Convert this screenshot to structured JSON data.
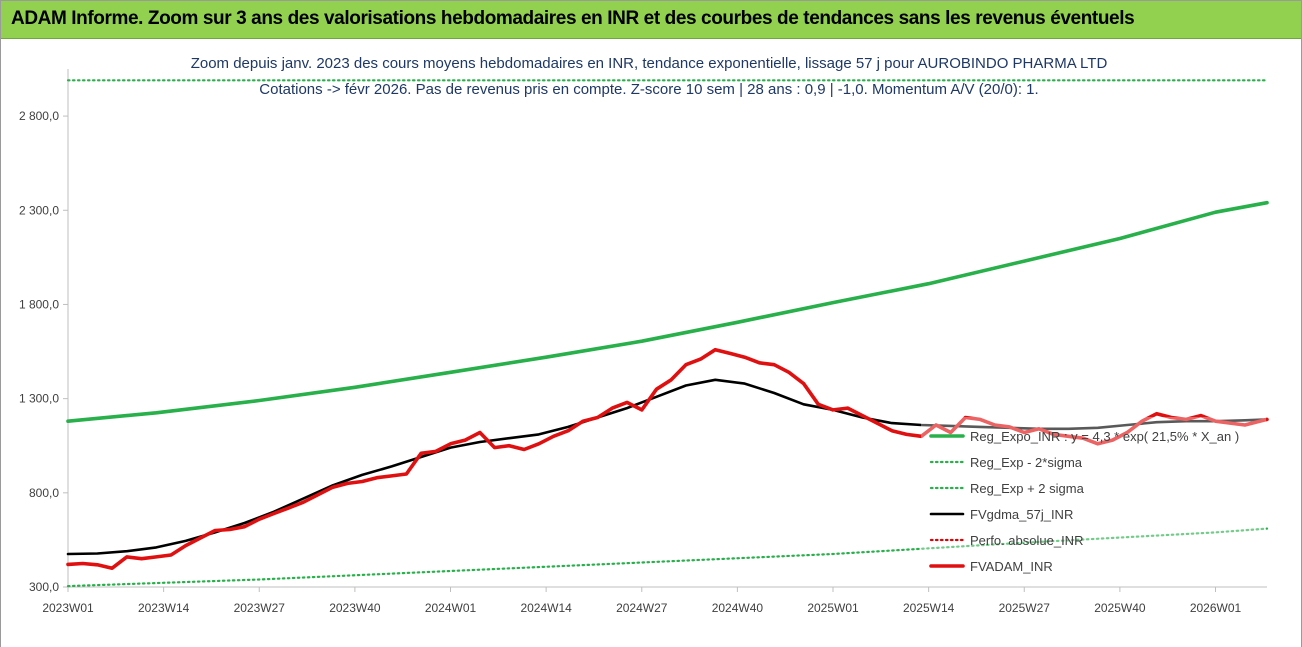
{
  "banner": {
    "title": "ADAM Informe. Zoom sur 3 ans des valorisations hebdomadaires en INR et des courbes de tendances sans les revenus éventuels"
  },
  "chart_data": {
    "type": "line",
    "subtitle_line1": "Zoom depuis janv. 2023 des cours moyens hebdomadaires en INR, tendance exponentielle, lissage 57 j pour AUROBINDO PHARMA LTD",
    "subtitle_line2": "Cotations -> févr 2026. Pas de revenus pris en compte. Z-score 10 sem | 28 ans : 0,9 | -1,0. Momentum A/V (20/0): 1.",
    "ylim": [
      300,
      3050
    ],
    "y_ticks": [
      "300,0",
      "800,0",
      "1 300,0",
      "1 800,0",
      "2 300,0",
      "2 800,0"
    ],
    "x_tick_labels": [
      "2023W01",
      "2023W14",
      "2023W27",
      "2023W40",
      "2024W01",
      "2024W14",
      "2024W27",
      "2024W40",
      "2025W01",
      "2025W14",
      "2025W27",
      "2025W40",
      "2026W01"
    ],
    "grid": false,
    "legend_position": "right",
    "series": [
      {
        "name": "Reg_Expo_INR : y = 4,3 * exp( 21,5% * X_an )",
        "color": "#28b04a",
        "style": "solid",
        "points": [
          [
            0,
            1180
          ],
          [
            12,
            1225
          ],
          [
            26,
            1290
          ],
          [
            39,
            1360
          ],
          [
            52,
            1440
          ],
          [
            65,
            1520
          ],
          [
            78,
            1605
          ],
          [
            91,
            1705
          ],
          [
            104,
            1810
          ],
          [
            117,
            1910
          ],
          [
            130,
            2030
          ],
          [
            143,
            2150
          ],
          [
            156,
            2290
          ],
          [
            163,
            2340
          ]
        ]
      },
      {
        "name": "Reg_Exp - 2*sigma",
        "color": "#28b04a",
        "style": "dotted",
        "points": [
          [
            0,
            305
          ],
          [
            26,
            340
          ],
          [
            52,
            385
          ],
          [
            78,
            430
          ],
          [
            104,
            475
          ],
          [
            130,
            535
          ],
          [
            156,
            590
          ],
          [
            163,
            610
          ]
        ]
      },
      {
        "name": "Reg_Exp + 2 sigma",
        "color": "#28b04a",
        "style": "dotted",
        "points": [
          [
            0,
            2990
          ],
          [
            163,
            2990
          ]
        ]
      },
      {
        "name": "FVgdma_57j_INR",
        "color": "#000000",
        "style": "solid",
        "points": [
          [
            0,
            475
          ],
          [
            4,
            478
          ],
          [
            8,
            490
          ],
          [
            12,
            510
          ],
          [
            16,
            545
          ],
          [
            20,
            590
          ],
          [
            24,
            640
          ],
          [
            28,
            700
          ],
          [
            32,
            770
          ],
          [
            36,
            840
          ],
          [
            40,
            895
          ],
          [
            44,
            940
          ],
          [
            48,
            990
          ],
          [
            52,
            1040
          ],
          [
            56,
            1070
          ],
          [
            60,
            1090
          ],
          [
            64,
            1110
          ],
          [
            68,
            1150
          ],
          [
            72,
            1200
          ],
          [
            76,
            1250
          ],
          [
            80,
            1310
          ],
          [
            84,
            1370
          ],
          [
            88,
            1400
          ],
          [
            92,
            1380
          ],
          [
            96,
            1330
          ],
          [
            100,
            1270
          ],
          [
            104,
            1240
          ],
          [
            108,
            1200
          ],
          [
            112,
            1170
          ],
          [
            116,
            1160
          ],
          [
            120,
            1155
          ],
          [
            124,
            1150
          ],
          [
            128,
            1145
          ],
          [
            132,
            1140
          ],
          [
            136,
            1140
          ],
          [
            140,
            1145
          ],
          [
            144,
            1160
          ],
          [
            148,
            1175
          ],
          [
            152,
            1180
          ],
          [
            156,
            1180
          ],
          [
            160,
            1185
          ],
          [
            163,
            1190
          ]
        ]
      },
      {
        "name": "Perfo. absolue_INR",
        "color": "#e00000",
        "style": "dotted",
        "points": []
      },
      {
        "name": "FVADAM_INR",
        "color": "#e01010",
        "style": "solid",
        "points": [
          [
            0,
            420
          ],
          [
            2,
            425
          ],
          [
            4,
            418
          ],
          [
            6,
            400
          ],
          [
            8,
            460
          ],
          [
            10,
            450
          ],
          [
            12,
            460
          ],
          [
            14,
            470
          ],
          [
            16,
            520
          ],
          [
            18,
            560
          ],
          [
            20,
            600
          ],
          [
            22,
            605
          ],
          [
            24,
            620
          ],
          [
            26,
            660
          ],
          [
            28,
            690
          ],
          [
            30,
            720
          ],
          [
            32,
            750
          ],
          [
            34,
            790
          ],
          [
            36,
            830
          ],
          [
            38,
            850
          ],
          [
            40,
            860
          ],
          [
            42,
            880
          ],
          [
            44,
            890
          ],
          [
            46,
            900
          ],
          [
            48,
            1010
          ],
          [
            50,
            1020
          ],
          [
            52,
            1060
          ],
          [
            54,
            1080
          ],
          [
            56,
            1120
          ],
          [
            58,
            1040
          ],
          [
            60,
            1050
          ],
          [
            62,
            1030
          ],
          [
            64,
            1060
          ],
          [
            66,
            1100
          ],
          [
            68,
            1130
          ],
          [
            70,
            1180
          ],
          [
            72,
            1200
          ],
          [
            74,
            1250
          ],
          [
            76,
            1280
          ],
          [
            78,
            1240
          ],
          [
            80,
            1350
          ],
          [
            82,
            1400
          ],
          [
            84,
            1480
          ],
          [
            86,
            1510
          ],
          [
            88,
            1560
          ],
          [
            90,
            1540
          ],
          [
            92,
            1520
          ],
          [
            94,
            1490
          ],
          [
            96,
            1480
          ],
          [
            98,
            1440
          ],
          [
            100,
            1380
          ],
          [
            102,
            1270
          ],
          [
            104,
            1240
          ],
          [
            106,
            1250
          ],
          [
            108,
            1210
          ],
          [
            110,
            1170
          ],
          [
            112,
            1130
          ],
          [
            114,
            1110
          ],
          [
            116,
            1100
          ],
          [
            118,
            1160
          ],
          [
            120,
            1120
          ],
          [
            122,
            1200
          ],
          [
            124,
            1190
          ],
          [
            126,
            1160
          ],
          [
            128,
            1150
          ],
          [
            130,
            1120
          ],
          [
            132,
            1140
          ],
          [
            134,
            1110
          ],
          [
            136,
            1100
          ],
          [
            138,
            1090
          ],
          [
            140,
            1060
          ],
          [
            142,
            1080
          ],
          [
            144,
            1120
          ],
          [
            146,
            1180
          ],
          [
            148,
            1220
          ],
          [
            150,
            1200
          ],
          [
            152,
            1190
          ],
          [
            154,
            1210
          ],
          [
            156,
            1180
          ],
          [
            158,
            1170
          ],
          [
            160,
            1160
          ],
          [
            162,
            1180
          ],
          [
            163,
            1190
          ]
        ]
      }
    ]
  }
}
